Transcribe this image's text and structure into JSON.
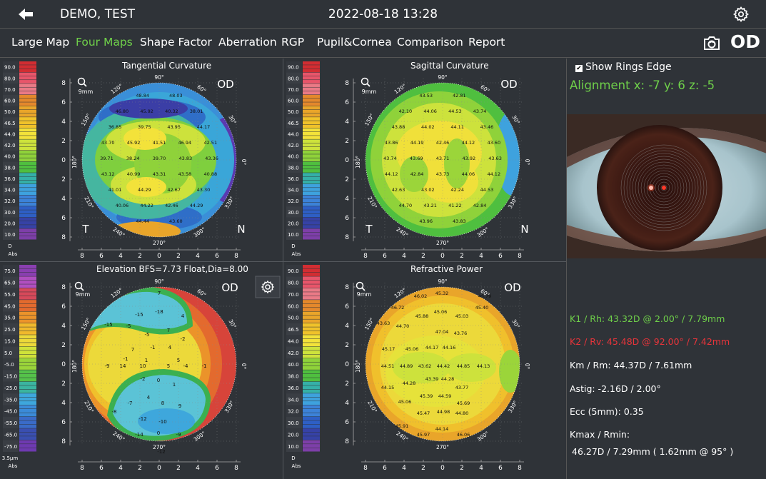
{
  "header": {
    "patient_name": "DEMO, TEST",
    "datetime": "2022-08-18 13:28"
  },
  "tabs": [
    {
      "label": "Large Map",
      "active": false
    },
    {
      "label": "Four Maps",
      "active": true
    },
    {
      "label": "Shape Factor",
      "active": false
    },
    {
      "label": "Aberration",
      "active": false
    },
    {
      "label": "RGP",
      "active": false
    },
    {
      "label": "Pupil&Cornea",
      "active": false
    },
    {
      "label": "Comparison",
      "active": false
    },
    {
      "label": "Report",
      "active": false
    }
  ],
  "eye_side": "OD",
  "colors": {
    "accent_green": "#6fd04a",
    "k2_red": "#e8343a",
    "background": "#2f3338"
  },
  "maps": {
    "tangential": {
      "title": "Tangential Curvature",
      "zoom": "9mm",
      "eye": "OD",
      "left_label": "T",
      "right_label": "N",
      "scale": [
        "90.0",
        "80.0",
        "70.0",
        "60.0",
        "50.0",
        "46.5",
        "44.0",
        "42.0",
        "40.0",
        "38.0",
        "36.0",
        "34.0",
        "32.0",
        "30.0",
        "20.0",
        "10.0"
      ],
      "scale_unit": "D",
      "scale_mode": "Abs",
      "values": [
        "48.84",
        "48.03",
        "46.80",
        "45.92",
        "40.32",
        "38.01",
        "36.85",
        "39.75",
        "43.95",
        "44.17",
        "43.70",
        "45.92",
        "41.51",
        "46.94",
        "42.51",
        "39.71",
        "38.24",
        "39.70",
        "43.83",
        "43.36",
        "43.12",
        "40.99",
        "43.31",
        "43.58",
        "40.88",
        "41.01",
        "44.29",
        "42.67",
        "43.30",
        "40.06",
        "44.22",
        "42.46",
        "44.29",
        "44.44",
        "43.60",
        "38.47",
        "40.71",
        "44.96",
        "40.23",
        "40.04",
        "37.04",
        "39.61",
        "42.48",
        "42.10",
        "43.81"
      ]
    },
    "sagittal": {
      "title": "Sagittal Curvature",
      "zoom": "9mm",
      "eye": "OD",
      "left_label": "T",
      "right_label": "N",
      "scale": [
        "90.0",
        "80.0",
        "70.0",
        "60.0",
        "50.0",
        "46.5",
        "44.0",
        "42.0",
        "40.0",
        "38.0",
        "36.0",
        "34.0",
        "32.0",
        "30.0",
        "20.0",
        "10.0"
      ],
      "scale_unit": "D",
      "scale_mode": "Abs",
      "values": [
        "43.53",
        "42.81",
        "42.10",
        "44.06",
        "44.53",
        "43.74",
        "43.88",
        "44.02",
        "44.11",
        "43.46",
        "43.86",
        "44.19",
        "42.46",
        "44.12",
        "43.60",
        "43.74",
        "43.69",
        "43.71",
        "43.92",
        "43.63",
        "44.12",
        "42.84",
        "43.73",
        "44.06",
        "44.12",
        "42.63",
        "43.02",
        "42.24",
        "44.53",
        "44.70",
        "43.21",
        "41.22",
        "42.84",
        "43.96",
        "43.83",
        "43.97",
        "43.36",
        "42.44",
        "42.57"
      ]
    },
    "elevation": {
      "title": "Elevation BFS=7.73 Float,Dia=8.00",
      "zoom": "9mm",
      "eye": "OD",
      "scale": [
        "75.0",
        "65.0",
        "55.0",
        "45.0",
        "35.0",
        "25.0",
        "15.0",
        "5.0",
        "-5.0",
        "-15.0",
        "-25.0",
        "-35.0",
        "-45.0",
        "-55.0",
        "-65.0",
        "-75.0"
      ],
      "scale_unit": "3.5μm",
      "scale_mode": "Abs",
      "values": [
        "7",
        "-15",
        "-18",
        "4",
        "-15",
        "-5",
        "7",
        "-5",
        "-2",
        "7",
        "-1",
        "4",
        "5",
        "1",
        "-1",
        "-9",
        "14",
        "10",
        "5",
        "-4",
        "-1",
        "-2",
        "0",
        "1",
        "4",
        "-7",
        "8",
        "9",
        "-8",
        "-12",
        "-10",
        "-14",
        "0",
        "-9",
        "-12"
      ]
    },
    "refractive": {
      "title": "Refractive Power",
      "zoom": "9mm",
      "eye": "OD",
      "scale": [
        "90.0",
        "80.0",
        "70.0",
        "60.0",
        "50.0",
        "46.5",
        "44.0",
        "42.0",
        "40.0",
        "38.0",
        "36.0",
        "34.0",
        "32.0",
        "30.0",
        "20.0",
        "10.0"
      ],
      "scale_unit": "D",
      "scale_mode": "Abs",
      "values": [
        "46.02",
        "45.32",
        "45.79",
        "46.72",
        "45.06",
        "45.40",
        "43.63",
        "45.88",
        "45.03",
        "44.70",
        "47.04",
        "43.76",
        "45.17",
        "45.06",
        "44.17",
        "44.16",
        "44.51",
        "44.89",
        "43.62",
        "44.42",
        "44.85",
        "44.13",
        "44.15",
        "44.28",
        "43.39",
        "44.28",
        "43.77",
        "45.39",
        "44.59",
        "45.06",
        "44.98",
        "45.69",
        "45.47",
        "44.80",
        "45.91",
        "44.14",
        "45.97",
        "46.06"
      ]
    }
  },
  "right_panel": {
    "show_rings_edge": "Show Rings Edge",
    "alignment": "Alignment x: -7  y: 6  z: -5",
    "k1": "K1 / Rh:  43.32D @ 2.00° / 7.79mm",
    "k2": "K2 / Rv:  45.48D @ 92.00° / 7.42mm",
    "km": "Km / Rm:  44.37D / 7.61mm",
    "astig": "Astig:  -2.16D / 2.00°",
    "ecc": "Ecc (5mm):  0.35",
    "kmax_label": "Kmax / Rmin:",
    "kmax_value": "46.27D / 7.29mm ( 1.62mm @ 95° )"
  },
  "axis": {
    "x_ticks": [
      "8",
      "6",
      "4",
      "2",
      "0",
      "2",
      "4",
      "6",
      "8"
    ],
    "y_ticks": [
      "8",
      "6",
      "4",
      "2",
      "0",
      "2",
      "4",
      "6",
      "8"
    ],
    "angle_labels": [
      "90°",
      "120°",
      "60°",
      "150°",
      "30°",
      "180°",
      "0°",
      "210°",
      "330°",
      "240°",
      "300°",
      "270°"
    ]
  }
}
